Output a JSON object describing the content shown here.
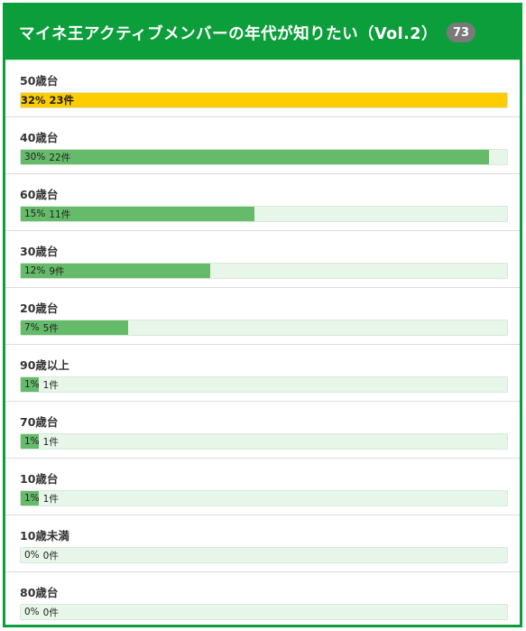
{
  "poll": {
    "title": "マイネ王アクティブメンバーの年代が知りたい（Vol.2）",
    "vote_count": "73",
    "colors": {
      "header": "#0d9e3c",
      "bar": "#66bb6a",
      "top_bar": "#ffcc00",
      "track": "#e8f5e9",
      "badge": "#7a7a7a"
    },
    "options": [
      {
        "label": "50歳台",
        "percent": 32,
        "percent_text": "32%",
        "votes_text": "23件",
        "fill": 1.0,
        "top": true
      },
      {
        "label": "40歳台",
        "percent": 30,
        "percent_text": "30%",
        "votes_text": "22件",
        "fill": 0.962,
        "top": false
      },
      {
        "label": "60歳台",
        "percent": 15,
        "percent_text": "15%",
        "votes_text": "11件",
        "fill": 0.48,
        "top": false
      },
      {
        "label": "30歳台",
        "percent": 12,
        "percent_text": "12%",
        "votes_text": "9件",
        "fill": 0.39,
        "top": false
      },
      {
        "label": "20歳台",
        "percent": 7,
        "percent_text": "7%",
        "votes_text": "5件",
        "fill": 0.22,
        "top": false
      },
      {
        "label": "90歳以上",
        "percent": 1,
        "percent_text": "1%",
        "votes_text": "1件",
        "fill": 0.037,
        "top": false
      },
      {
        "label": "70歳台",
        "percent": 1,
        "percent_text": "1%",
        "votes_text": "1件",
        "fill": 0.037,
        "top": false
      },
      {
        "label": "10歳台",
        "percent": 1,
        "percent_text": "1%",
        "votes_text": "1件",
        "fill": 0.037,
        "top": false
      },
      {
        "label": "10歳未満",
        "percent": 0,
        "percent_text": "0%",
        "votes_text": "0件",
        "fill": 0,
        "top": false
      },
      {
        "label": "80歳台",
        "percent": 0,
        "percent_text": "0%",
        "votes_text": "0件",
        "fill": 0,
        "top": false
      }
    ]
  }
}
